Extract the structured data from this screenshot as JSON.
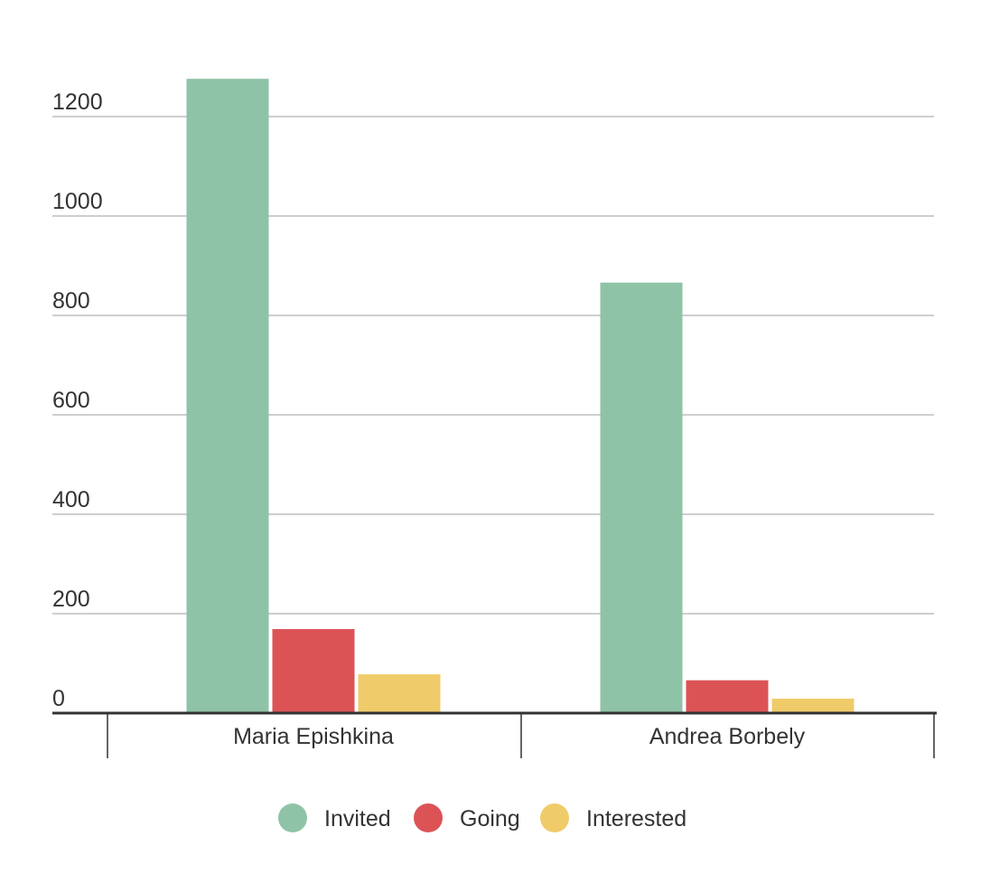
{
  "chart_data": {
    "type": "bar",
    "categories": [
      "Maria Epishkina",
      "Andrea Borbely"
    ],
    "series": [
      {
        "name": "Invited",
        "values": [
          1276,
          866
        ]
      },
      {
        "name": "Going",
        "values": [
          169,
          66
        ]
      },
      {
        "name": "Interested",
        "values": [
          78,
          29
        ]
      }
    ],
    "colors": {
      "Invited": "#8fc3a7",
      "Going": "#dc5356",
      "Interested": "#f0cb69"
    },
    "ylim": [
      0,
      1200
    ],
    "yticks": [
      0,
      200,
      400,
      600,
      800,
      1000,
      1200
    ],
    "grid": true,
    "legend_position": "bottom"
  }
}
